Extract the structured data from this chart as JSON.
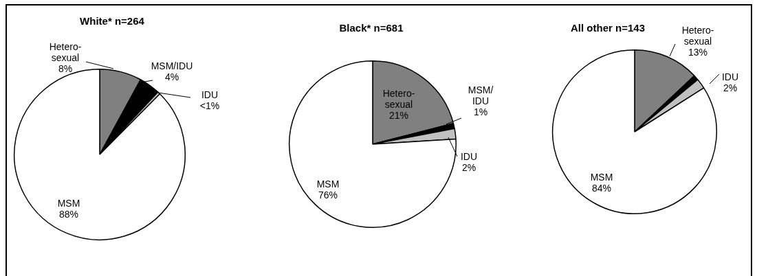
{
  "chart_data": [
    {
      "type": "pie",
      "title": "White* n=264",
      "categories": [
        "Hetero-sexual",
        "MSM/IDU",
        "IDU",
        "MSM"
      ],
      "values": [
        8,
        4,
        0.5,
        88
      ],
      "value_labels": [
        "8%",
        "4%",
        "<1%",
        "88%"
      ],
      "colors": [
        "#808080",
        "#000000",
        "#c0c0c0",
        "#ffffff"
      ]
    },
    {
      "type": "pie",
      "title": "Black* n=681",
      "categories": [
        "Hetero-sexual",
        "MSM/IDU",
        "IDU",
        "MSM"
      ],
      "values": [
        21,
        1,
        2,
        76
      ],
      "value_labels": [
        "21%",
        "1%",
        "2%",
        "76%"
      ],
      "colors": [
        "#808080",
        "#000000",
        "#c0c0c0",
        "#ffffff"
      ]
    },
    {
      "type": "pie",
      "title": "All other n=143",
      "categories": [
        "Hetero-sexual",
        null,
        "IDU",
        "MSM"
      ],
      "values": [
        13,
        1,
        2,
        84
      ],
      "value_labels": [
        "13%",
        null,
        "2%",
        "84%"
      ],
      "colors": [
        "#808080",
        "#000000",
        "#c0c0c0",
        "#ffffff"
      ]
    }
  ]
}
